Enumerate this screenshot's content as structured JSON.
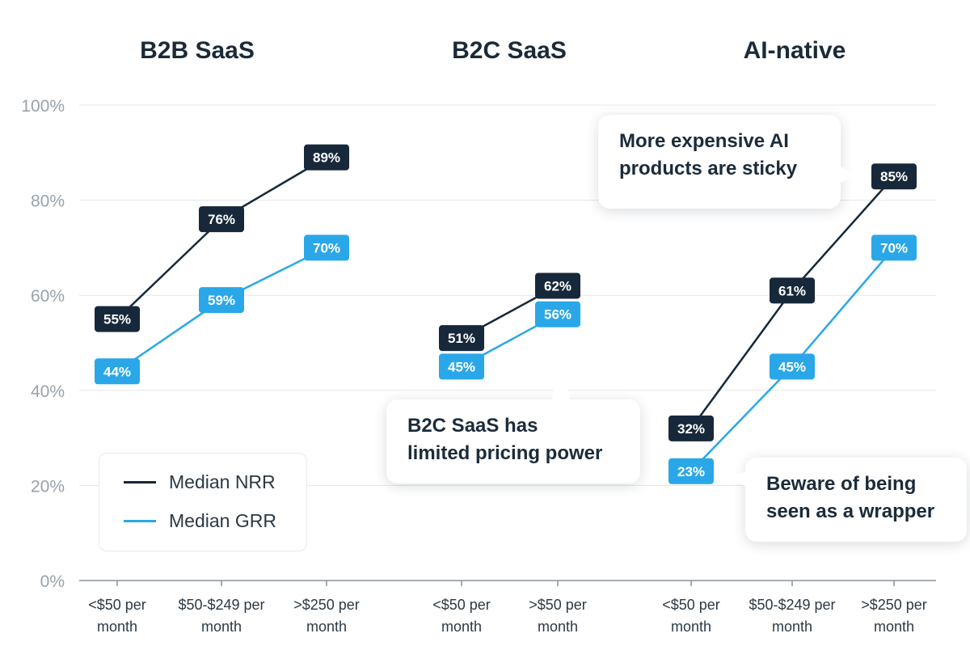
{
  "chart_data": {
    "type": "line",
    "panels": [
      {
        "title": "B2B SaaS",
        "categories": [
          "<$50 per month",
          "$50-$249 per month",
          ">$250 per month"
        ],
        "nrr": [
          55,
          76,
          89
        ],
        "grr": [
          44,
          59,
          70
        ]
      },
      {
        "title": "B2C SaaS",
        "categories": [
          "<$50 per month",
          ">$50 per month"
        ],
        "nrr": [
          51,
          62
        ],
        "grr": [
          45,
          56
        ]
      },
      {
        "title": "AI-native",
        "categories": [
          "<$50 per month",
          "$50-$249 per month",
          ">$250 per month"
        ],
        "nrr": [
          32,
          61,
          85
        ],
        "grr": [
          23,
          45,
          70
        ]
      }
    ],
    "y_ticks": [
      "100%",
      "80%",
      "60%",
      "40%",
      "20%",
      "0%"
    ],
    "ylim": [
      0,
      100
    ],
    "series": [
      {
        "name": "Median NRR",
        "color": "#17283a"
      },
      {
        "name": "Median GRR",
        "color": "#2aa7e8"
      }
    ],
    "grid": true,
    "legend_placement": "bottom-left"
  },
  "callouts": {
    "ai_sticky": [
      "More expensive AI",
      "products are sticky"
    ],
    "b2c_pricing": [
      "B2C SaaS has",
      "limited pricing power"
    ],
    "wrapper": [
      "Beware of being",
      "seen as a wrapper"
    ]
  }
}
